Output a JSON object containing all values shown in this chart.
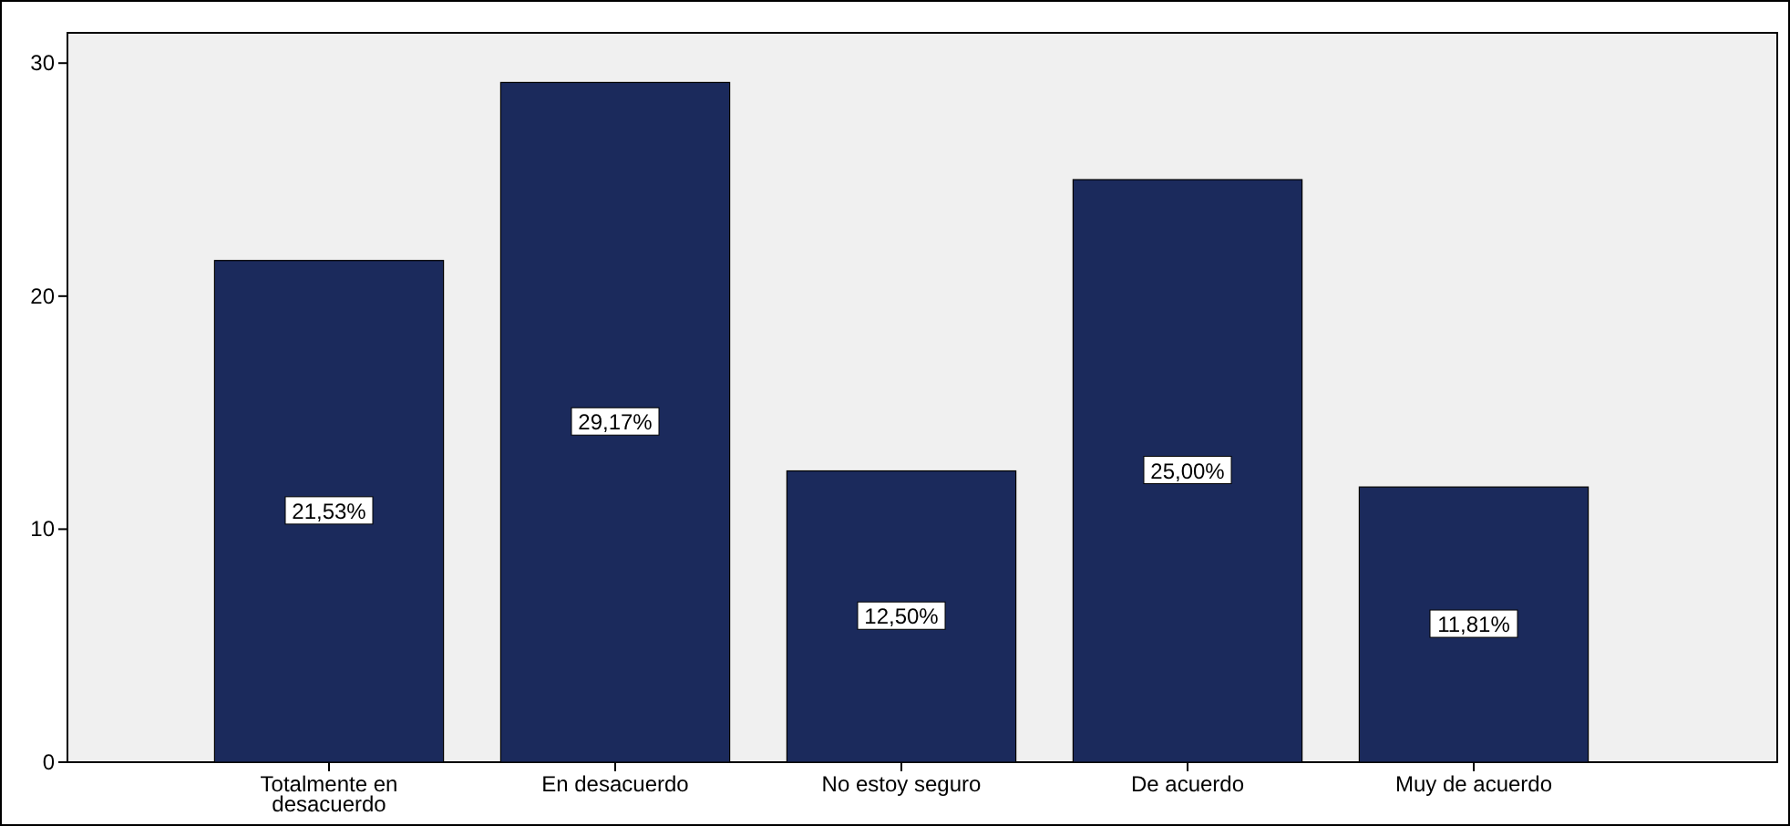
{
  "chart_data": {
    "type": "bar",
    "categories": [
      "Totalmente en desacuerdo",
      "En desacuerdo",
      "No estoy seguro",
      "De acuerdo",
      "Muy de acuerdo"
    ],
    "values": [
      21.53,
      29.17,
      12.5,
      25.0,
      11.81
    ],
    "value_labels": [
      "21,53%",
      "29,17%",
      "12,50%",
      "25,00%",
      "11,81%"
    ],
    "color": "#1b2a5c",
    "ylim": [
      0,
      31.3
    ],
    "yticks": [
      0,
      10,
      20,
      30
    ],
    "grid": false
  }
}
